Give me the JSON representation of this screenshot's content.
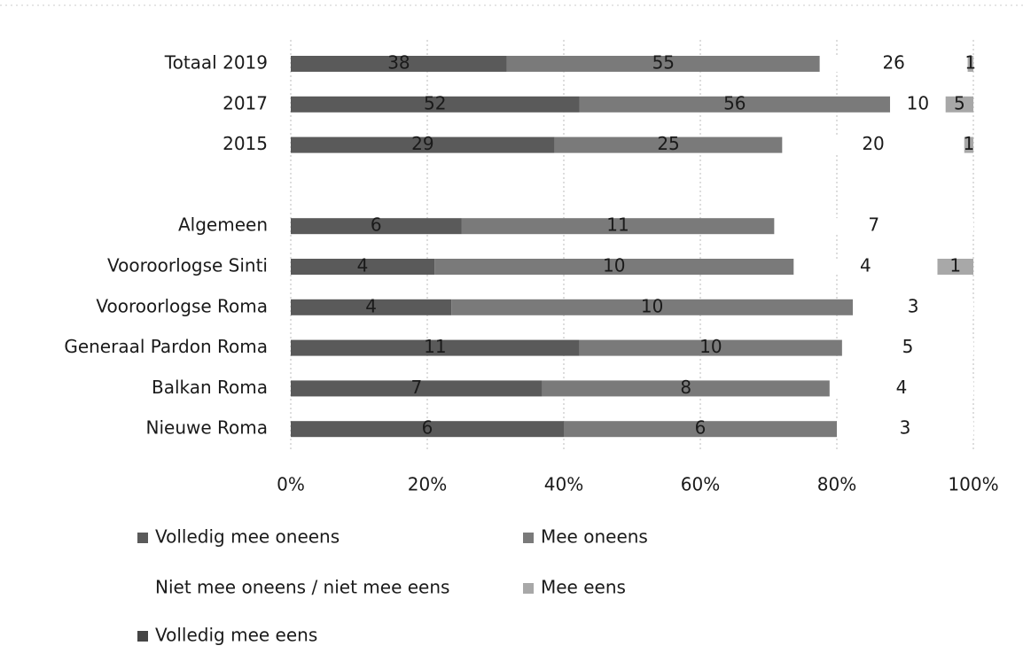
{
  "chart_data": {
    "type": "bar",
    "orientation": "horizontal",
    "stacked": "percent",
    "categories": [
      "Totaal 2019",
      "2017",
      "2015",
      null,
      "Algemeen",
      "Vooroorlogse Sinti",
      "Vooroorlogse Roma",
      "Generaal Pardon Roma",
      "Balkan Roma",
      "Nieuwe Roma"
    ],
    "series": [
      {
        "name": "Volledig mee oneens",
        "color": "#5a5a5a",
        "values": [
          38,
          52,
          29,
          null,
          6,
          4,
          4,
          11,
          7,
          6
        ]
      },
      {
        "name": "Mee oneens",
        "color": "#7a7a7a",
        "values": [
          55,
          56,
          25,
          null,
          11,
          10,
          10,
          10,
          8,
          6
        ]
      },
      {
        "name": "Niet mee oneens / niet mee eens",
        "color": "#ffffff",
        "values": [
          26,
          10,
          20,
          null,
          7,
          4,
          3,
          5,
          4,
          3
        ]
      },
      {
        "name": "Mee eens",
        "color": "#a8a8a8",
        "values": [
          1,
          5,
          1,
          null,
          null,
          1,
          null,
          null,
          null,
          null
        ]
      },
      {
        "name": "Volledig mee eens",
        "color": "#454545",
        "values": [
          null,
          null,
          null,
          null,
          null,
          null,
          null,
          null,
          null,
          null
        ]
      }
    ],
    "xlim": [
      0,
      100
    ],
    "xticks": [
      {
        "value": 0,
        "label": "0%"
      },
      {
        "value": 20,
        "label": "20%"
      },
      {
        "value": 40,
        "label": "40%"
      },
      {
        "value": 60,
        "label": "60%"
      },
      {
        "value": 80,
        "label": "80%"
      },
      {
        "value": 100,
        "label": "100%"
      }
    ],
    "grid": true,
    "legend": "bottom"
  }
}
